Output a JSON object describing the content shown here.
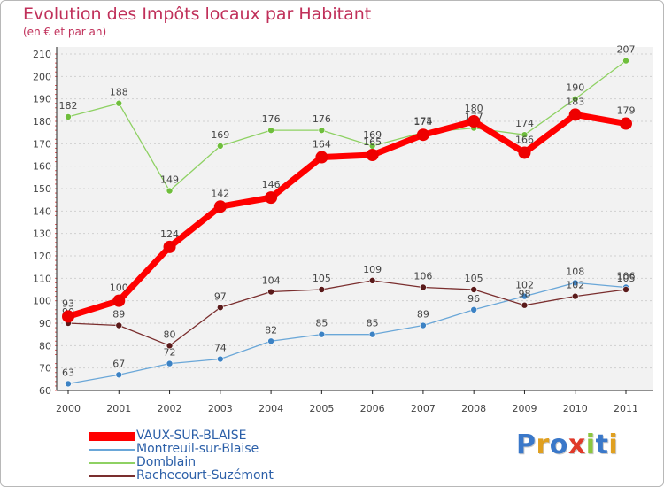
{
  "title": "Evolution des Impôts locaux par Habitant",
  "subtitle": "(en € et par an)",
  "logo": {
    "text": "Proxiti",
    "letters": [
      "P",
      "r",
      "o",
      "x",
      "i",
      "t",
      "i"
    ],
    "colors": [
      "#3a78c9",
      "#e0a020",
      "#3a78c9",
      "#e03a2a",
      "#8cc63f",
      "#3a78c9",
      "#e0a020"
    ]
  },
  "chart_data": {
    "type": "line",
    "title": "Evolution des Impôts locaux par Habitant",
    "subtitle": "(en € et par an)",
    "xlabel": "",
    "ylabel": "",
    "grid": "horizontal dotted",
    "ylim": [
      60,
      210
    ],
    "yticks": [
      60,
      70,
      80,
      90,
      100,
      110,
      120,
      130,
      140,
      150,
      160,
      170,
      180,
      190,
      200,
      210
    ],
    "categories": [
      "2000",
      "2001",
      "2002",
      "2003",
      "2004",
      "2005",
      "2006",
      "2007",
      "2008",
      "2009",
      "2010",
      "2011"
    ],
    "series": [
      {
        "name": "Domblain",
        "color": "#8ed163",
        "dot": "#6fbe3c",
        "width": 1.3,
        "radius": 3.5,
        "values": [
          182,
          188,
          149,
          169,
          176,
          176,
          169,
          175,
          177,
          174,
          190,
          207
        ],
        "labels": [
          "182",
          "188",
          "149",
          "169",
          "176",
          "176",
          "169",
          "175",
          "177",
          "174",
          "190",
          "207"
        ]
      },
      {
        "name": "Montreuil-sur-Blaise",
        "color": "#6aa7d8",
        "dot": "#3c82c4",
        "width": 1.3,
        "radius": 3.5,
        "values": [
          63,
          67,
          72,
          74,
          82,
          85,
          85,
          89,
          96,
          102,
          108,
          106
        ],
        "labels": [
          "63",
          "67",
          "72",
          "74",
          "82",
          "85",
          "85",
          "89",
          "96",
          "102",
          "108",
          "106"
        ]
      },
      {
        "name": "Rachecourt-Suzémont",
        "color": "#7a2e2e",
        "dot": "#5a1a1a",
        "width": 1.3,
        "radius": 3.5,
        "values": [
          90,
          89,
          80,
          97,
          104,
          105,
          109,
          106,
          105,
          98,
          102,
          105
        ],
        "labels": [
          "90",
          "89",
          "80",
          "97",
          "104",
          "105",
          "109",
          "106",
          "105",
          "98",
          "102",
          "105"
        ]
      },
      {
        "name": "VAUX-SUR-BLAISE",
        "color": "#ff0000",
        "dot": "#ee0000",
        "width": 7,
        "radius": 7,
        "values": [
          93,
          100,
          124,
          142,
          146,
          164,
          165,
          174,
          180,
          166,
          183,
          179
        ],
        "labels": [
          "93",
          "100",
          "124",
          "142",
          "146",
          "164",
          "165",
          "174",
          "180",
          "166",
          "183",
          "179"
        ]
      }
    ],
    "legend": [
      "VAUX-SUR-BLAISE",
      "Montreuil-sur-Blaise",
      "Domblain",
      "Rachecourt-Suzémont"
    ],
    "legend_position": "bottom-left"
  }
}
